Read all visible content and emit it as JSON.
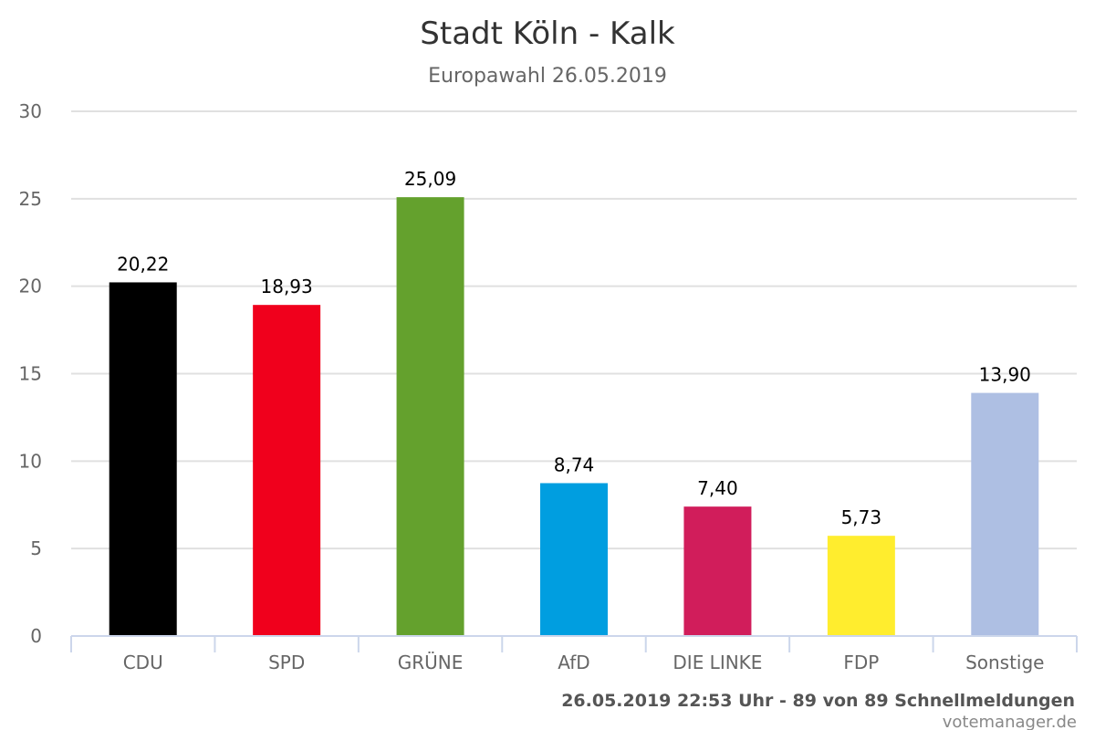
{
  "chart_data": {
    "type": "bar",
    "title": "Stadt Köln - Kalk",
    "subtitle": "Europawahl 26.05.2019",
    "categories": [
      "CDU",
      "SPD",
      "GRÜNE",
      "AfD",
      "DIE LINKE",
      "FDP",
      "Sonstige"
    ],
    "values": [
      20.22,
      18.93,
      25.09,
      8.74,
      7.4,
      5.73,
      13.9
    ],
    "value_labels": [
      "20,22",
      "18,93",
      "25,09",
      "8,74",
      "7,40",
      "5,73",
      "13,90"
    ],
    "colors": [
      "#000000",
      "#f0001c",
      "#64a12d",
      "#009ee0",
      "#d11d5b",
      "#ffed2e",
      "#aebfe3"
    ],
    "ylim": [
      0,
      30
    ],
    "yticks": [
      0,
      5,
      10,
      15,
      20,
      25,
      30
    ],
    "grid": true,
    "xlabel": "",
    "ylabel": ""
  },
  "footer": {
    "status": "26.05.2019 22:53 Uhr - 89 von 89 Schnellmeldungen",
    "credit": "votemanager.de"
  }
}
